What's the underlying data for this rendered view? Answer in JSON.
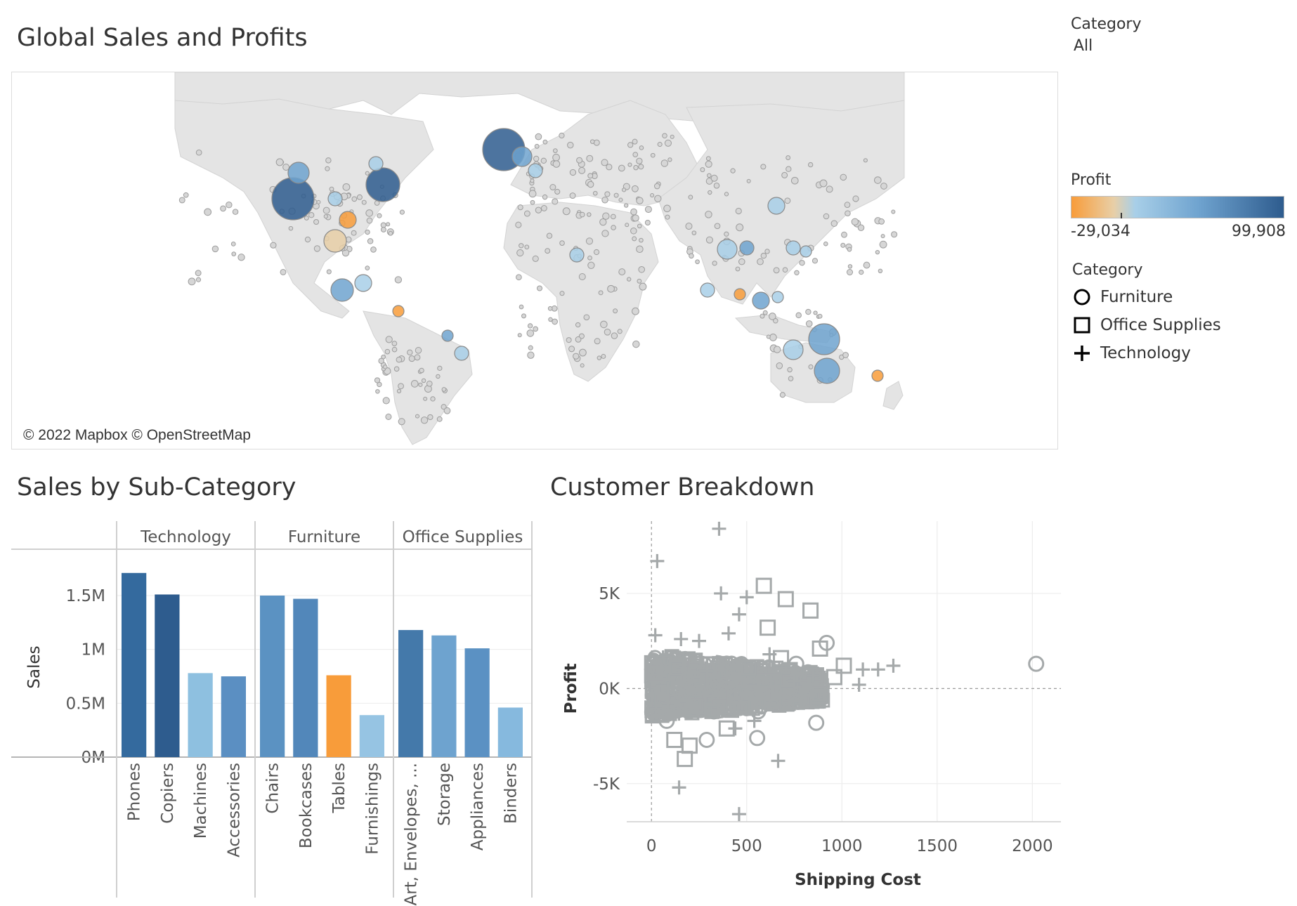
{
  "map": {
    "title": "Global Sales and Profits",
    "credit": "© 2022 Mapbox © OpenStreetMap"
  },
  "filter": {
    "label": "Category",
    "value": "All"
  },
  "profit_legend": {
    "label": "Profit",
    "min_label": "-29,034",
    "max_label": "99,908",
    "colors": [
      "#f89c3a",
      "#e8cfa7",
      "#a8cfe8",
      "#6fa3cf",
      "#2e5c8e"
    ]
  },
  "category_legend": {
    "label": "Category",
    "items": [
      {
        "name": "Furniture",
        "shape": "circle-icon"
      },
      {
        "name": "Office Supplies",
        "shape": "square-icon"
      },
      {
        "name": "Technology",
        "shape": "plus-icon"
      }
    ]
  },
  "chart_data": [
    {
      "type": "bar",
      "title": "Sales by Sub-Category",
      "ylabel": "Sales",
      "ylim": [
        0,
        1.8
      ],
      "yticks": [
        0,
        0.5,
        1,
        1.5
      ],
      "ytick_labels": [
        "0M",
        "0.5M",
        "1M",
        "1.5M"
      ],
      "groups": [
        {
          "name": "Technology",
          "categories": [
            "Phones",
            "Copiers",
            "Machines",
            "Accessories"
          ],
          "values": [
            1.71,
            1.51,
            0.78,
            0.75
          ],
          "colors": [
            "#346a9e",
            "#2e5c8e",
            "#8ec0e0",
            "#5b8fc2"
          ]
        },
        {
          "name": "Furniture",
          "categories": [
            "Chairs",
            "Bookcases",
            "Tables",
            "Furnishings"
          ],
          "values": [
            1.5,
            1.47,
            0.76,
            0.39
          ],
          "colors": [
            "#5b92c2",
            "#5287ba",
            "#f89c3a",
            "#96c4e3"
          ]
        },
        {
          "name": "Office Supplies",
          "categories": [
            "Art, Envelopes, ...",
            "Storage",
            "Appliances",
            "Binders"
          ],
          "values": [
            1.18,
            1.13,
            1.01,
            0.46
          ],
          "colors": [
            "#4479aa",
            "#6ea3cf",
            "#5b91c3",
            "#86b9de"
          ]
        }
      ]
    },
    {
      "type": "scatter",
      "title": "Customer Breakdown",
      "xlabel": "Shipping Cost",
      "ylabel": "Profit",
      "xlim": [
        -130,
        2150
      ],
      "ylim": [
        -7000,
        8800
      ],
      "xticks": [
        0,
        500,
        1000,
        1500,
        2000
      ],
      "xtick_labels": [
        "0",
        "500",
        "1000",
        "1500",
        "2000"
      ],
      "yticks": [
        -5000,
        0,
        5000
      ],
      "ytick_labels": [
        "-5K",
        "0K",
        "5K"
      ],
      "color": "#a5a9aa",
      "points": [
        {
          "x": 355,
          "y": 8400,
          "shape": "plus"
        },
        {
          "x": 30,
          "y": 6700,
          "shape": "plus"
        },
        {
          "x": 365,
          "y": 5000,
          "shape": "plus"
        },
        {
          "x": 500,
          "y": 4800,
          "shape": "plus"
        },
        {
          "x": 590,
          "y": 5400,
          "shape": "square"
        },
        {
          "x": 705,
          "y": 4700,
          "shape": "square"
        },
        {
          "x": 835,
          "y": 4100,
          "shape": "square"
        },
        {
          "x": 610,
          "y": 3200,
          "shape": "square"
        },
        {
          "x": 460,
          "y": 3900,
          "shape": "plus"
        },
        {
          "x": 20,
          "y": 2800,
          "shape": "plus"
        },
        {
          "x": 155,
          "y": 2600,
          "shape": "plus"
        },
        {
          "x": 405,
          "y": 2900,
          "shape": "plus"
        },
        {
          "x": 250,
          "y": 2500,
          "shape": "plus"
        },
        {
          "x": 920,
          "y": 2400,
          "shape": "circle"
        },
        {
          "x": 885,
          "y": 2100,
          "shape": "square"
        },
        {
          "x": 1010,
          "y": 1200,
          "shape": "square"
        },
        {
          "x": 1110,
          "y": 1000,
          "shape": "plus"
        },
        {
          "x": 1190,
          "y": 1000,
          "shape": "plus"
        },
        {
          "x": 1270,
          "y": 1200,
          "shape": "plus"
        },
        {
          "x": 2020,
          "y": 1300,
          "shape": "circle"
        },
        {
          "x": 1090,
          "y": 200,
          "shape": "plus"
        },
        {
          "x": 960,
          "y": 600,
          "shape": "square"
        },
        {
          "x": 700,
          "y": -600,
          "shape": "circle"
        },
        {
          "x": 770,
          "y": -700,
          "shape": "circle"
        },
        {
          "x": 865,
          "y": -1800,
          "shape": "circle"
        },
        {
          "x": 560,
          "y": -1200,
          "shape": "circle"
        },
        {
          "x": 540,
          "y": -1700,
          "shape": "plus"
        },
        {
          "x": 395,
          "y": -2100,
          "shape": "square"
        },
        {
          "x": 440,
          "y": -2100,
          "shape": "plus"
        },
        {
          "x": 555,
          "y": -2600,
          "shape": "circle"
        },
        {
          "x": 665,
          "y": -3800,
          "shape": "plus"
        },
        {
          "x": 120,
          "y": -2700,
          "shape": "square"
        },
        {
          "x": 175,
          "y": -3700,
          "shape": "square"
        },
        {
          "x": 145,
          "y": -5200,
          "shape": "plus"
        },
        {
          "x": 460,
          "y": -6600,
          "shape": "plus"
        },
        {
          "x": 290,
          "y": -2700,
          "shape": "circle"
        },
        {
          "x": 200,
          "y": -3000,
          "shape": "square"
        },
        {
          "x": 80,
          "y": -1700,
          "shape": "circle"
        },
        {
          "x": 620,
          "y": 1800,
          "shape": "plus"
        },
        {
          "x": 680,
          "y": 1600,
          "shape": "square"
        },
        {
          "x": 760,
          "y": 1300,
          "shape": "circle"
        }
      ],
      "cluster": {
        "x_range": [
          0,
          900
        ],
        "y_range": [
          -1500,
          1800
        ]
      }
    }
  ]
}
